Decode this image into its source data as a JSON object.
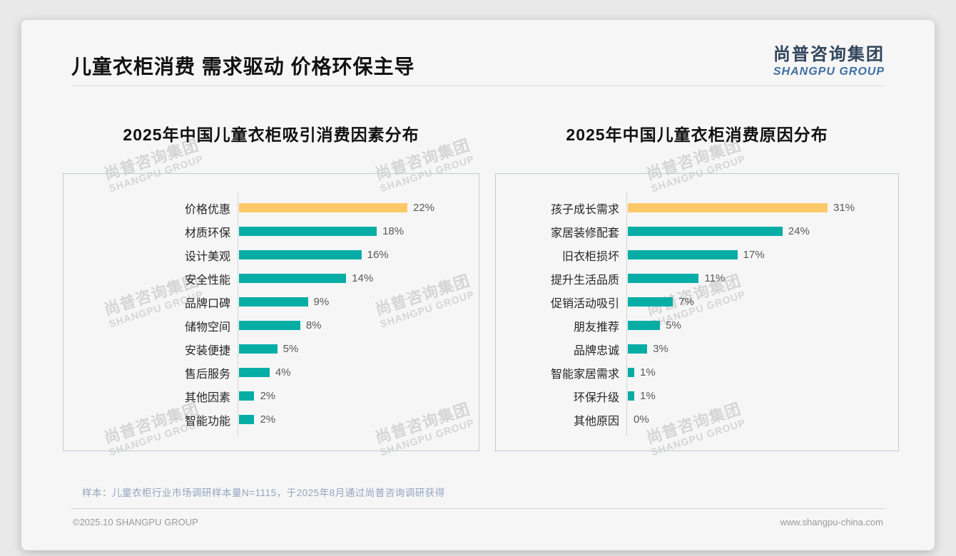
{
  "header": {
    "title": "儿童衣柜消费 需求驱动 价格环保主导",
    "logo": {
      "name_cn": "尚普咨询集团",
      "name_en": "SHANGPU GROUP"
    }
  },
  "watermark": {
    "line1": "尚普咨询集团",
    "line2": "SHANGPU GROUP"
  },
  "colors": {
    "bar_highlight": "#FCC969",
    "bar_default": "#06ADA5",
    "logo_cn": "#31455C",
    "logo_en": "#3E6FA3",
    "chart_box_border": "#C2CBD8"
  },
  "chart_data": [
    {
      "type": "bar",
      "orientation": "horizontal",
      "title": "2025年中国儿童衣柜吸引消费因素分布",
      "categories": [
        "价格优惠",
        "材质环保",
        "设计美观",
        "安全性能",
        "品牌口碑",
        "储物空间",
        "安装便捷",
        "售后服务",
        "其他因素",
        "智能功能"
      ],
      "values": [
        22,
        18,
        16,
        14,
        9,
        8,
        5,
        4,
        2,
        2
      ],
      "unit": "%",
      "xlim": [
        0,
        22
      ],
      "highlight_index": 0,
      "bar_color_highlight": "#FCC969",
      "bar_color_default": "#06ADA5",
      "grid": false,
      "legend": false,
      "value_labels": "outside-end"
    },
    {
      "type": "bar",
      "orientation": "horizontal",
      "title": "2025年中国儿童衣柜消费原因分布",
      "categories": [
        "孩子成长需求",
        "家居装修配套",
        "旧衣柜损坏",
        "提升生活品质",
        "促销活动吸引",
        "朋友推荐",
        "品牌忠诚",
        "智能家居需求",
        "环保升级",
        "其他原因"
      ],
      "values": [
        31,
        24,
        17,
        11,
        7,
        5,
        3,
        1,
        1,
        0
      ],
      "unit": "%",
      "xlim": [
        0,
        31
      ],
      "highlight_index": 0,
      "bar_color_highlight": "#FCC969",
      "bar_color_default": "#06ADA5",
      "grid": false,
      "legend": false,
      "value_labels": "outside-end"
    }
  ],
  "footer": {
    "note": "样本：儿童衣柜行业市场调研样本量N=1115，于2025年8月通过尚普咨询调研获得",
    "copyright": "©2025.10 SHANGPU GROUP",
    "website": "www.shangpu-china.com"
  }
}
